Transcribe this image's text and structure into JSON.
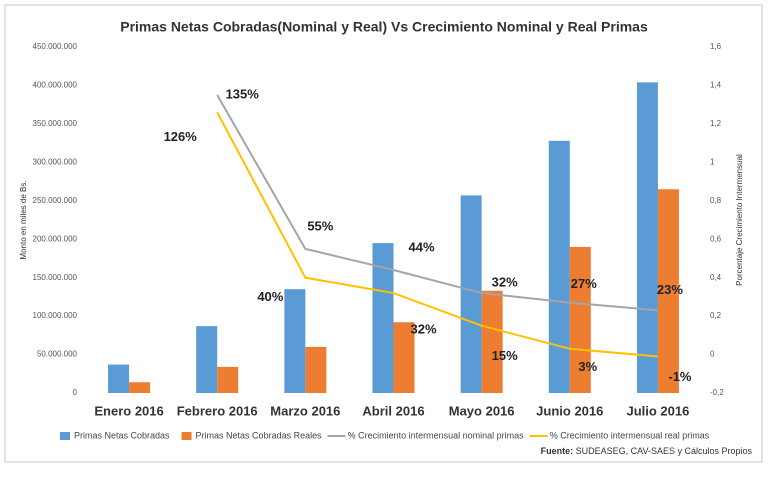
{
  "chart_data": {
    "type": "bar-line",
    "title": "Primas Netas Cobradas(Nominal  y Real) Vs Crecimiento Nominal  y Real Primas",
    "ylabel": "Monto en miles de Bs.",
    "y2label": "Porcentaje Crecimiento Intermensual",
    "source_label": "Fuente:",
    "source": "SUDEASEG, CAV-SAES y Cálculos Propios",
    "categories": [
      "Enero 2016",
      "Febrero 2016",
      "Marzo 2016",
      "Abril 2016",
      "Mayo 2016",
      "Junio 2016",
      "Julio 2016"
    ],
    "series": [
      {
        "name": "Primas Netas Cobradas",
        "kind": "bar",
        "color": "#5b9bd5",
        "values": [
          37000000,
          87000000,
          135000000,
          195000000,
          257000000,
          328000000,
          404000000
        ]
      },
      {
        "name": "Primas Netas Cobradas Reales",
        "kind": "bar",
        "color": "#ed7d31",
        "values": [
          14000000,
          34000000,
          60000000,
          92000000,
          133000000,
          190000000,
          265000000
        ]
      },
      {
        "name": "% Crecimiento intermensual nominal primas",
        "kind": "line",
        "axis": "y2",
        "color": "#a5a5a5",
        "values": [
          null,
          1.35,
          0.55,
          0.44,
          0.32,
          0.27,
          0.23
        ],
        "value_labels": [
          null,
          "135%",
          "55%",
          "44%",
          "32%",
          "27%",
          "23%"
        ]
      },
      {
        "name": "% Crecimiento intermensual real primas",
        "kind": "line",
        "axis": "y2",
        "color": "#ffc000",
        "values": [
          null,
          1.26,
          0.4,
          0.32,
          0.15,
          0.03,
          -0.01
        ],
        "value_labels": [
          null,
          "126%",
          "40%",
          "32%",
          "15%",
          "3%",
          "-1%"
        ]
      }
    ],
    "ylim": [
      0,
      450000000
    ],
    "yticks": [
      0,
      {
        "value": 50000000,
        "label": "50.000.000"
      },
      {
        "value": 100000000,
        "label": "100.000.000"
      },
      {
        "value": 150000000,
        "label": "150.000.000"
      },
      {
        "value": 200000000,
        "label": "200.000.000"
      },
      {
        "value": 250000000,
        "label": "250.000.000"
      },
      {
        "value": 300000000,
        "label": "300.000.000"
      },
      {
        "value": 350000000,
        "label": "350.000.000"
      },
      {
        "value": 400000000,
        "label": "400.000.000"
      },
      {
        "value": 450000000,
        "label": "450.000.000"
      }
    ],
    "y2lim": [
      -0.2,
      1.6
    ],
    "y2ticks": [
      {
        "value": -0.2,
        "label": "-0,2"
      },
      0,
      {
        "value": 0.2,
        "label": "0,2"
      },
      {
        "value": 0.4,
        "label": "0,4"
      },
      {
        "value": 0.6,
        "label": "0,6"
      },
      {
        "value": 0.8,
        "label": "0,8"
      },
      1,
      {
        "value": 1.2,
        "label": "1,2"
      },
      {
        "value": 1.4,
        "label": "1,4"
      },
      {
        "value": 1.6,
        "label": "1,6"
      }
    ],
    "grid": false
  }
}
